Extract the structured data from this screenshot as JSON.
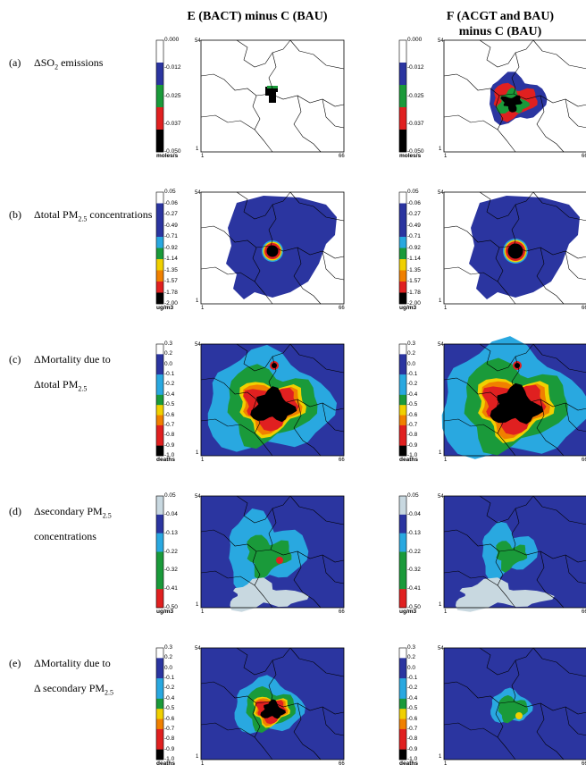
{
  "columns": [
    {
      "line1": "E (BACT) minus C (BAU)",
      "line2": ""
    },
    {
      "line1": "F (ACGT and BAU)",
      "line2": "minus C (BAU)"
    }
  ],
  "rows": [
    {
      "tag": "(a)",
      "lines": [
        {
          "pre": "ΔSO",
          "sub": "2",
          "post": " emissions"
        }
      ],
      "unit": "moles/s",
      "ticks": [
        "0.000",
        "-0.012",
        "-0.025",
        "-0.037",
        "-0.050"
      ],
      "colors": [
        "#ffffff",
        "#2b35a0",
        "#1a9a3a",
        "#e02020",
        "#000000"
      ]
    },
    {
      "tag": "(b)",
      "lines": [
        {
          "pre": "Δtotal PM",
          "sub": "2.5",
          "post": " concentrations"
        }
      ],
      "unit": "ug/m3",
      "ticks": [
        "0.05",
        "-0.06",
        "-0.27",
        "-0.49",
        "-0.71",
        "-0.92",
        "-1.14",
        "-1.35",
        "-1.57",
        "-1.78",
        "-2.00"
      ],
      "colors": [
        "#ffffff",
        "#2b35a0",
        "#2b35a0",
        "#2b35a0",
        "#29a8e0",
        "#1a9a3a",
        "#f0d000",
        "#f08000",
        "#e02020",
        "#000000"
      ]
    },
    {
      "tag": "(c)",
      "lines": [
        {
          "pre": "ΔMortality due to",
          "sub": "",
          "post": ""
        },
        {
          "pre": "Δtotal PM",
          "sub": "2.5",
          "post": ""
        }
      ],
      "unit": "deaths",
      "ticks": [
        "0.3",
        "0.2",
        "0.0",
        "-0.1",
        "-0.2",
        "-0.4",
        "-0.5",
        "-0.6",
        "-0.7",
        "-0.8",
        "-0.9",
        "-1.0"
      ],
      "colors": [
        "#ffffff",
        "#2b35a0",
        "#2b35a0",
        "#29a8e0",
        "#29a8e0",
        "#1a9a3a",
        "#f0d000",
        "#f08000",
        "#e02020",
        "#e02020",
        "#000000"
      ]
    },
    {
      "tag": "(d)",
      "lines": [
        {
          "pre": "Δsecondary PM",
          "sub": "2.5",
          "post": ""
        },
        {
          "pre": "concentrations",
          "sub": "",
          "post": ""
        }
      ],
      "unit": "ug/m3",
      "ticks": [
        "0.05",
        "-0.04",
        "-0.13",
        "-0.22",
        "-0.32",
        "-0.41",
        "-0.50"
      ],
      "colors": [
        "#c8d8e0",
        "#2b35a0",
        "#29a8e0",
        "#1a9a3a",
        "#1a9a3a",
        "#e02020"
      ]
    },
    {
      "tag": "(e)",
      "lines": [
        {
          "pre": "ΔMortality due to",
          "sub": "",
          "post": ""
        },
        {
          "pre": "Δ secondary PM",
          "sub": "2.5",
          "post": ""
        }
      ],
      "unit": "deaths",
      "ticks": [
        "0.3",
        "0.2",
        "0.0",
        "-0.1",
        "-0.2",
        "-0.4",
        "-0.5",
        "-0.6",
        "-0.7",
        "-0.8",
        "-0.9",
        "-1.0"
      ],
      "colors": [
        "#ffffff",
        "#2b35a0",
        "#2b35a0",
        "#29a8e0",
        "#29a8e0",
        "#1a9a3a",
        "#f0d000",
        "#f08000",
        "#e02020",
        "#e02020",
        "#000000"
      ]
    }
  ],
  "axis": {
    "top": "54",
    "bottom": "1",
    "left": "1",
    "right": "66"
  },
  "fills": {
    "background": "#2b35a0",
    "cyan": "#29a8e0",
    "green": "#1a9a3a",
    "yellow": "#f0d000",
    "orange": "#f08000",
    "red": "#e02020",
    "black": "#000000",
    "grey": "#c8d8e0"
  }
}
